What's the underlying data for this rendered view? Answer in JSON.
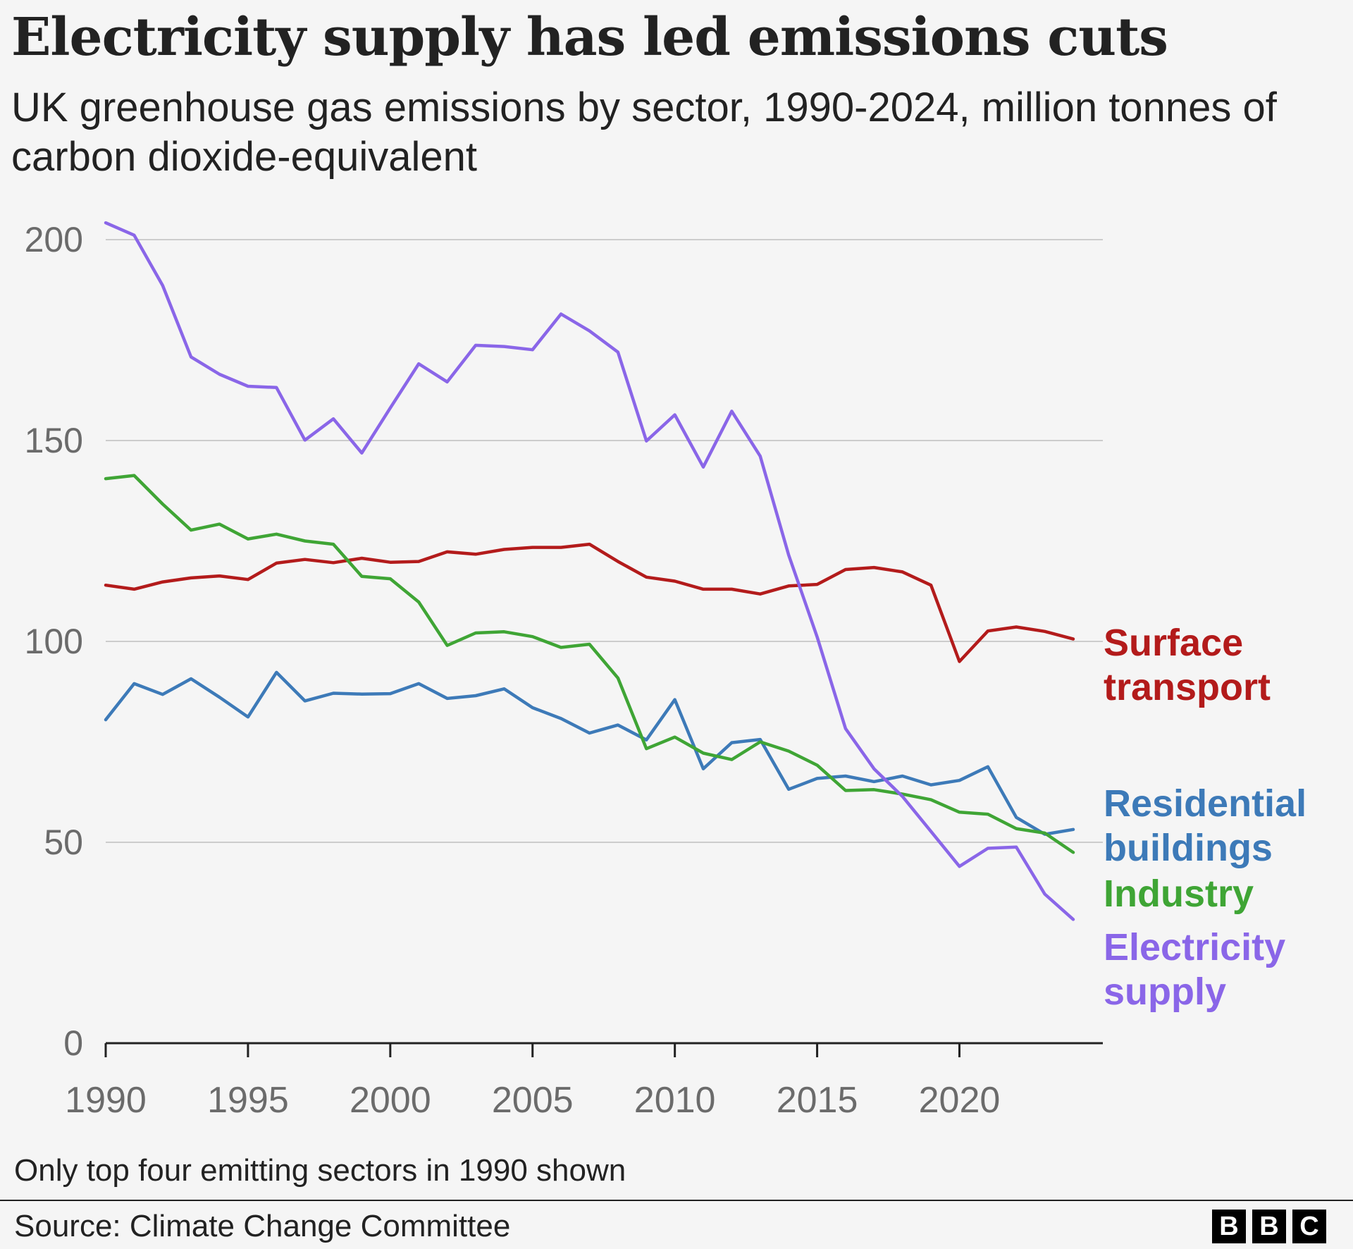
{
  "chart_data": {
    "type": "line",
    "title": "Electricity supply has led emissions cuts",
    "subtitle": "UK greenhouse gas emissions by sector, 1990-2024, million tonnes of carbon dioxide-equivalent",
    "xlabel": "",
    "ylabel": "",
    "xlim": [
      1990,
      2024
    ],
    "ylim": [
      0,
      200
    ],
    "yticks": [
      0,
      50,
      100,
      150,
      200
    ],
    "xticks": [
      1990,
      1995,
      2000,
      2005,
      2010,
      2015,
      2020
    ],
    "grid": true,
    "legend": "direct labels at line ends (right)",
    "x": [
      1990,
      1991,
      1992,
      1993,
      1994,
      1995,
      1996,
      1997,
      1998,
      1999,
      2000,
      2001,
      2002,
      2003,
      2004,
      2005,
      2006,
      2007,
      2008,
      2009,
      2010,
      2011,
      2012,
      2013,
      2014,
      2015,
      2016,
      2017,
      2018,
      2019,
      2020,
      2021,
      2022,
      2023,
      2024
    ],
    "series": [
      {
        "name": "Surface transport",
        "label_lines": [
          "Surface",
          "transport"
        ],
        "color": "#b31b1b",
        "values": [
          114,
          113,
          114.8,
          115.8,
          116.3,
          115.4,
          119.5,
          120.4,
          119.6,
          120.7,
          119.7,
          119.9,
          122.3,
          121.7,
          122.9,
          123.4,
          123.4,
          124.2,
          119.9,
          116,
          115,
          113,
          113,
          111.8,
          113.8,
          114.2,
          117.9,
          118.4,
          117.3,
          114,
          95,
          102.6,
          103.6,
          102.5,
          100.6
        ]
      },
      {
        "name": "Residential buildings",
        "label_lines": [
          "Residential",
          "buildings"
        ],
        "color": "#3d7ab8",
        "values": [
          80.5,
          89.5,
          86.8,
          90.7,
          86.1,
          81.2,
          92.3,
          85.2,
          87.1,
          86.9,
          87,
          89.5,
          85.8,
          86.5,
          88.2,
          83.5,
          80.8,
          77.2,
          79.2,
          75.5,
          85.5,
          68.3,
          74.8,
          75.6,
          63.2,
          65.9,
          66.5,
          65.1,
          66.5,
          64.3,
          65.4,
          68.8,
          56.2,
          52,
          53.2
        ]
      },
      {
        "name": "Industry",
        "label_lines": [
          "Industry"
        ],
        "color": "#3fa535",
        "values": [
          140.5,
          141.3,
          134.2,
          127.7,
          129.2,
          125.5,
          126.7,
          125,
          124.2,
          116.2,
          115.6,
          109.8,
          99,
          102.1,
          102.4,
          101.2,
          98.5,
          99.3,
          90.9,
          73.3,
          76.2,
          72.2,
          70.6,
          75,
          72.7,
          69.2,
          62.9,
          63.1,
          62,
          60.6,
          57.5,
          57,
          53.4,
          52.3,
          47.5
        ]
      },
      {
        "name": "Electricity supply",
        "label_lines": [
          "Electricity",
          "supply"
        ],
        "color": "#8a66e8",
        "values": [
          204.2,
          201.1,
          188.6,
          170.8,
          166.5,
          163.5,
          163.2,
          150.1,
          155.4,
          146.9,
          158.1,
          169.1,
          164.6,
          173.7,
          173.4,
          172.6,
          181.5,
          177.3,
          172,
          149.9,
          156.4,
          143.4,
          157.3,
          146.1,
          121.5,
          101.1,
          78.3,
          68.3,
          61.4,
          52.7,
          44,
          48.5,
          48.8,
          37.1,
          30.8
        ]
      }
    ]
  },
  "footer": {
    "note": "Only top four emitting sectors in 1990 shown",
    "source": "Source: Climate Change Committee",
    "logo_letters": [
      "B",
      "B",
      "C"
    ]
  }
}
